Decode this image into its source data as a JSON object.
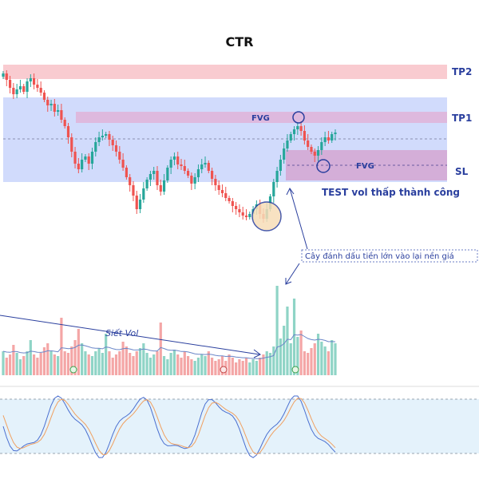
{
  "chart_data": {
    "type": "candlestick",
    "title": "CTR",
    "labels": {
      "tp2": "TP2",
      "tp1": "TP1",
      "sl": "SL",
      "fvg_upper": "FVG",
      "fvg_lower": "FVG",
      "test_note": "TEST vol thấp thành công",
      "marker_note": "Cây đánh dấu tiền lớn vào lại nền giá",
      "volume_note": "Siết Vol"
    },
    "colors": {
      "up": "#26a69a",
      "down": "#ef5350",
      "up_vol": "#8fd4c6",
      "down_vol": "#f4a6a6",
      "zone_blue": "#c9d5fb",
      "zone_pink": "#f7c6cc",
      "zone_purple": "#d3a9d9",
      "annotation": "#2a3f9e",
      "stoch_band": "#e3f2fb"
    }
  }
}
